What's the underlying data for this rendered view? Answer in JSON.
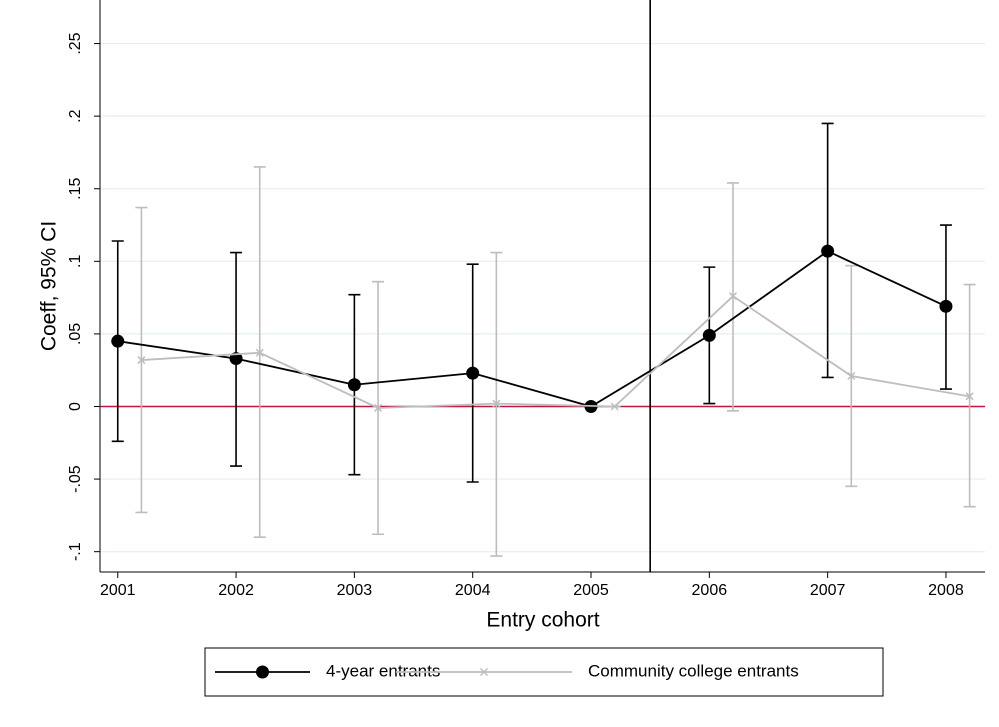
{
  "chart_data": {
    "type": "line",
    "ylabel": "Coeff, 95% CI",
    "xlabel": "Entry cohort",
    "xlim": [
      2000.85,
      2008.33
    ],
    "ylim": [
      -0.114,
      0.28
    ],
    "xticks": [
      2001,
      2002,
      2003,
      2004,
      2005,
      2006,
      2007,
      2008
    ],
    "yticks": [
      {
        "value": -0.1,
        "label": "-.1"
      },
      {
        "value": -0.05,
        "label": "-.05"
      },
      {
        "value": 0,
        "label": "0"
      },
      {
        "value": 0.05,
        "label": ".05"
      },
      {
        "value": 0.1,
        "label": ".1"
      },
      {
        "value": 0.15,
        "label": ".15"
      },
      {
        "value": 0.2,
        "label": ".2"
      },
      {
        "value": 0.25,
        "label": ".25"
      }
    ],
    "grid": true,
    "hline": 0,
    "hline_color": "#c0183c",
    "vline": 2005.5,
    "legend": "bottom",
    "series": [
      {
        "name": "4-year entrants",
        "color": "#000000",
        "marker": "circle",
        "x": [
          2001,
          2002,
          2003,
          2004,
          2005,
          2006,
          2007,
          2008
        ],
        "values": [
          0.045,
          0.033,
          0.015,
          0.023,
          0,
          0.049,
          0.107,
          0.069
        ],
        "lower": [
          -0.024,
          -0.041,
          -0.047,
          -0.052,
          0,
          0.002,
          0.02,
          0.012
        ],
        "upper": [
          0.114,
          0.106,
          0.077,
          0.098,
          0,
          0.096,
          0.195,
          0.125
        ]
      },
      {
        "name": "Community college entrants",
        "color": "#bdbdbd",
        "marker": "x",
        "x": [
          2001.2,
          2002.2,
          2003.2,
          2004.2,
          2005.2,
          2006.2,
          2007.2,
          2008.2
        ],
        "values": [
          0.032,
          0.037,
          -0.001,
          0.002,
          0,
          0.076,
          0.021,
          0.007
        ],
        "lower": [
          -0.073,
          -0.09,
          -0.088,
          -0.103,
          0,
          -0.003,
          -0.055,
          -0.069
        ],
        "upper": [
          0.137,
          0.165,
          0.086,
          0.106,
          0,
          0.154,
          0.097,
          0.084
        ]
      }
    ]
  }
}
